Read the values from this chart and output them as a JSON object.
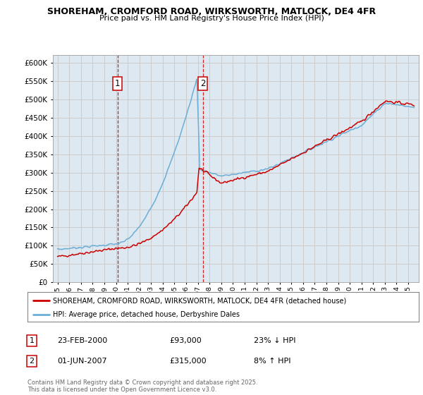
{
  "title": "SHOREHAM, CROMFORD ROAD, WIRKSWORTH, MATLOCK, DE4 4FR",
  "subtitle": "Price paid vs. HM Land Registry's House Price Index (HPI)",
  "legend_line1": "SHOREHAM, CROMFORD ROAD, WIRKSWORTH, MATLOCK, DE4 4FR (detached house)",
  "legend_line2": "HPI: Average price, detached house, Derbyshire Dales",
  "annotation1_date": "23-FEB-2000",
  "annotation1_price": "£93,000",
  "annotation1_hpi": "23% ↓ HPI",
  "annotation2_date": "01-JUN-2007",
  "annotation2_price": "£315,000",
  "annotation2_hpi": "8% ↑ HPI",
  "footer": "Contains HM Land Registry data © Crown copyright and database right 2025.\nThis data is licensed under the Open Government Licence v3.0.",
  "red_color": "#cc0000",
  "blue_color": "#6baed6",
  "vline_color": "#cc0000",
  "grid_color": "#cccccc",
  "background_color": "#ffffff",
  "plot_bg_color": "#dde8f0",
  "ylim": [
    0,
    620000
  ],
  "yticks": [
    0,
    50000,
    100000,
    150000,
    200000,
    250000,
    300000,
    350000,
    400000,
    450000,
    500000,
    550000,
    600000
  ],
  "marker1_x": 2000.13,
  "marker2_x": 2007.42
}
